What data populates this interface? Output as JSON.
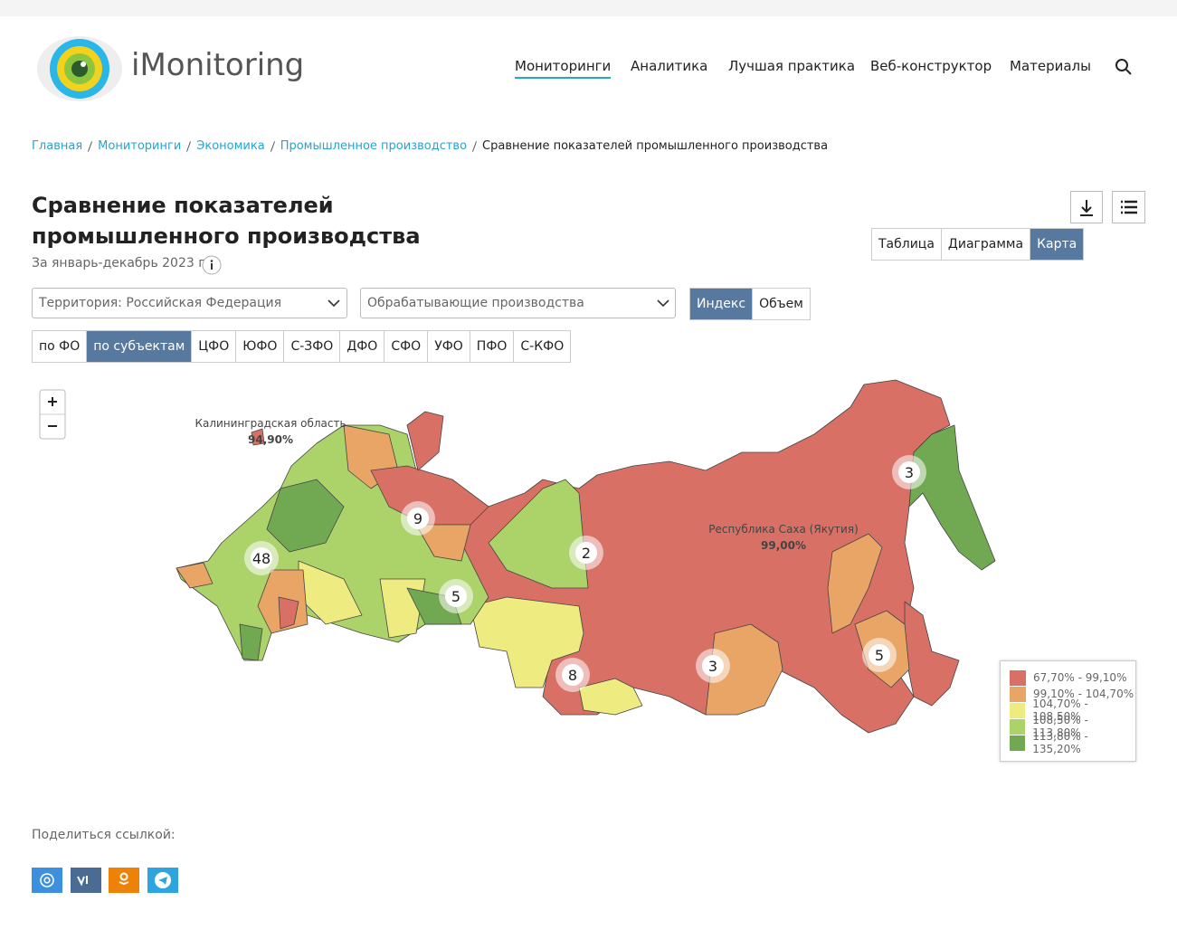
{
  "header": {
    "logo_text": "iMonitoring",
    "nav": [
      "Мониторинги",
      "Аналитика",
      "Лучшая практика",
      "Веб-конструктор",
      "Материалы"
    ]
  },
  "breadcrumbs": [
    "Главная",
    "Мониторинги",
    "Экономика",
    "Промышленное производство",
    "Сравнение показателей промышленного производства"
  ],
  "title": "Сравнение показателей промышленного производства",
  "subtitle": "За январь-декабрь 2023 г.",
  "view_tabs": [
    "Таблица",
    "Диаграмма",
    "Карта"
  ],
  "filters": {
    "territory": "Территория: Российская  Федерация",
    "industry": "Обрабатывающие производства",
    "modes": [
      "Индекс",
      "Объем"
    ]
  },
  "district_tabs": [
    "по ФО",
    "по субъектам",
    "ЦФО",
    "ЮФО",
    "С-ЗФО",
    "ДФО",
    "СФО",
    "УФО",
    "ПФО",
    "С-КФО"
  ],
  "map": {
    "labels": [
      {
        "name": "Калининградская область",
        "value": "94,90%"
      },
      {
        "name": "Республика Саха (Якутия)",
        "value": "99,00%"
      }
    ],
    "clusters": [
      48,
      9,
      5,
      2,
      3,
      3,
      5,
      8
    ],
    "legend": [
      "67,70% - 99,10%",
      "99,10% - 104,70%",
      "104,70% - 108,50%",
      "108,50% - 113,80%",
      "113,80% - 135,20%"
    ]
  },
  "share": {
    "label": "Поделиться ссылкой:"
  }
}
